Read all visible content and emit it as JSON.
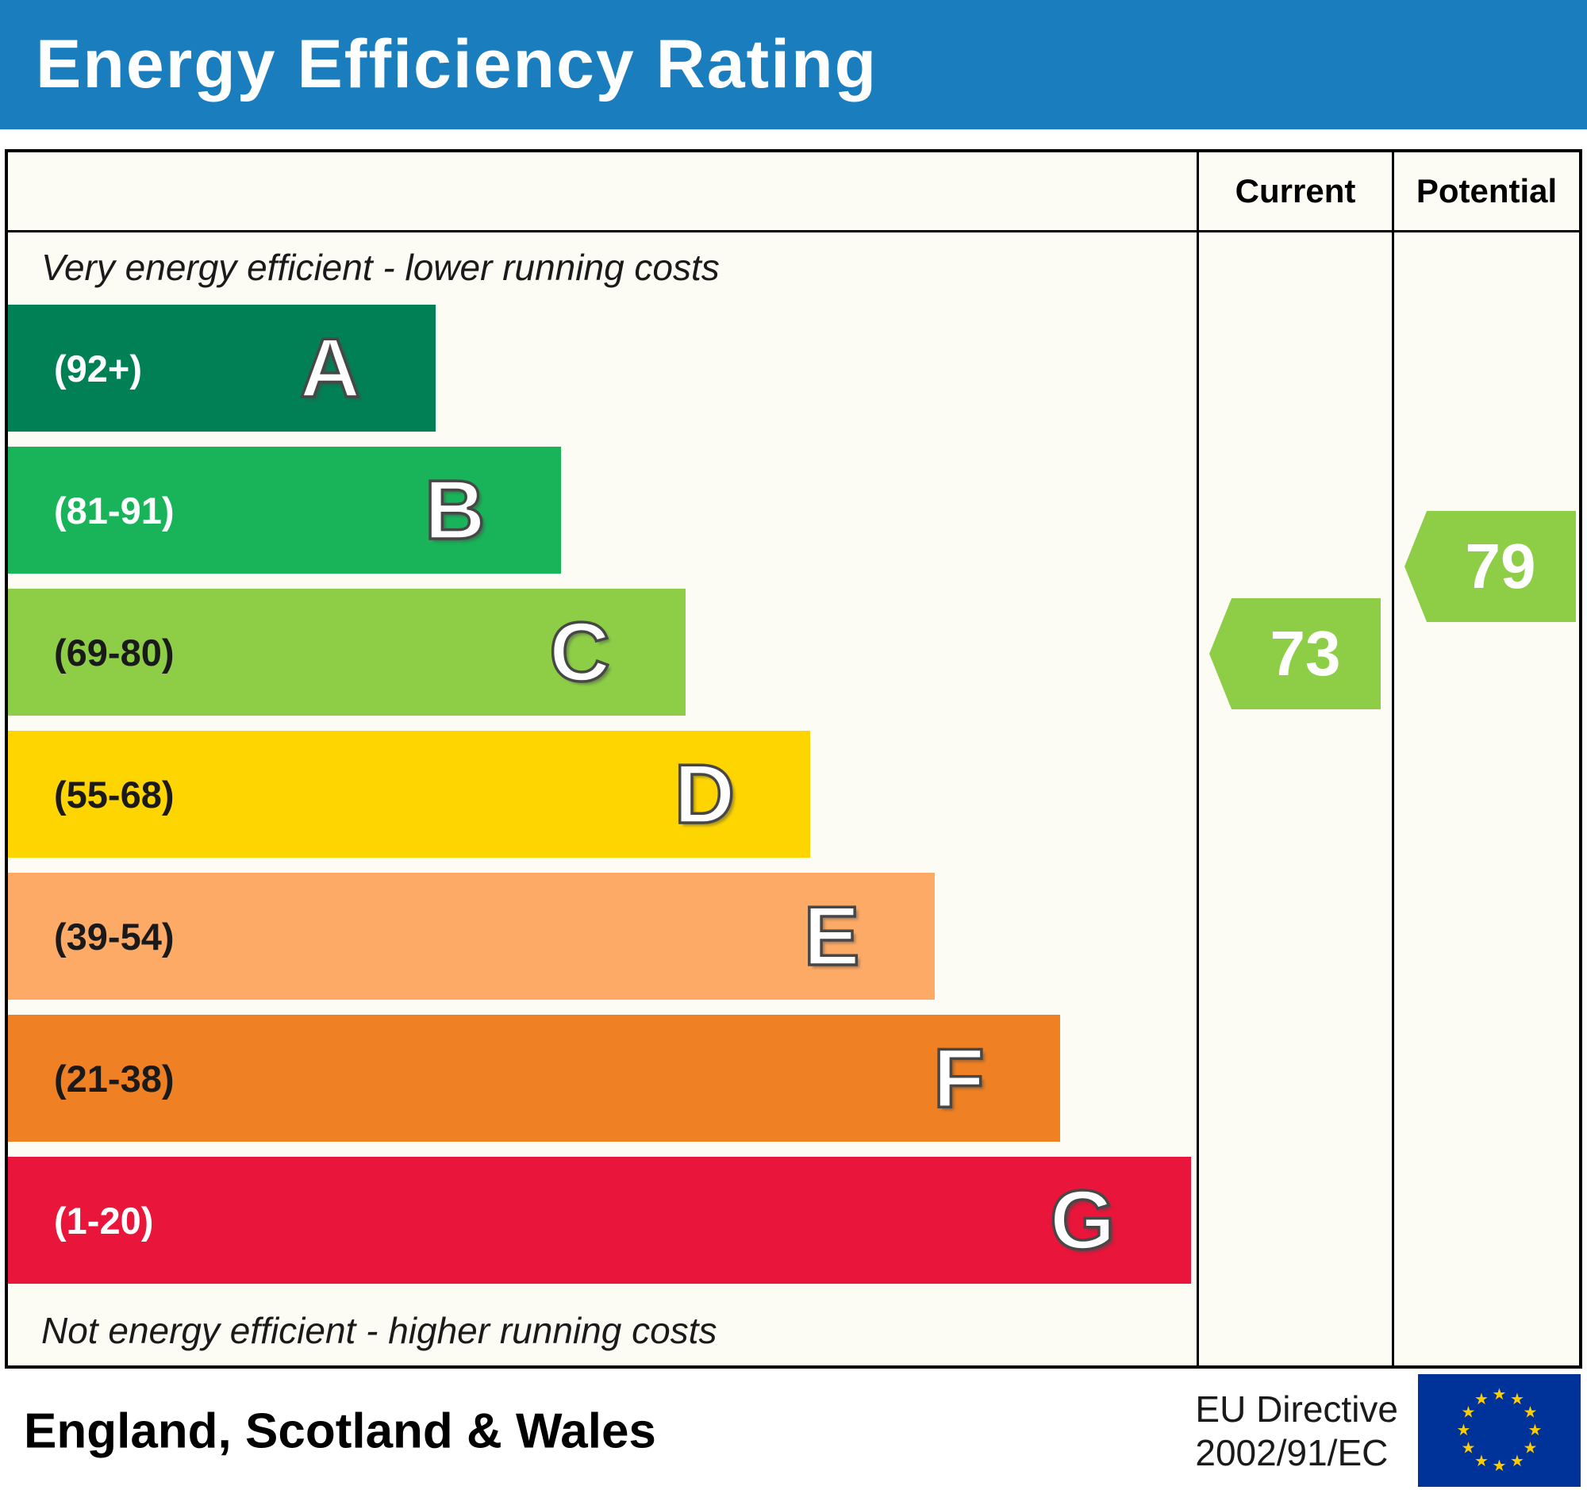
{
  "header": {
    "title": "Energy Efficiency Rating",
    "background_color": "#1a7dbe"
  },
  "table": {
    "columns": {
      "current": "Current",
      "potential": "Potential"
    },
    "top_note": "Very energy efficient - lower running costs",
    "bottom_note": "Not energy efficient - higher running costs"
  },
  "footer": {
    "region": "England, Scotland & Wales",
    "directive_line1": "EU Directive",
    "directive_line2": "2002/91/EC",
    "eu_flag_icon": "eu-flag",
    "eu_flag_colors": {
      "field": "#003399",
      "stars": "#ffcc00"
    }
  },
  "chart_data": {
    "type": "bar",
    "orientation": "horizontal",
    "title": "Energy Efficiency Rating",
    "grid": false,
    "legend_position": "none",
    "bands": [
      {
        "letter": "A",
        "range_label": "(92+)",
        "range_min": 92,
        "range_max": 100,
        "color": "#008054",
        "label_color": "#ffffff",
        "width_pct": 36
      },
      {
        "letter": "B",
        "range_label": "(81-91)",
        "range_min": 81,
        "range_max": 91,
        "color": "#19b459",
        "label_color": "#ffffff",
        "width_pct": 46.5
      },
      {
        "letter": "C",
        "range_label": "(69-80)",
        "range_min": 69,
        "range_max": 80,
        "color": "#8dce46",
        "label_color": "#1a1a1a",
        "width_pct": 57
      },
      {
        "letter": "D",
        "range_label": "(55-68)",
        "range_min": 55,
        "range_max": 68,
        "color": "#ffd500",
        "label_color": "#1a1a1a",
        "width_pct": 67.5
      },
      {
        "letter": "E",
        "range_label": "(39-54)",
        "range_min": 39,
        "range_max": 54,
        "color": "#fcaa65",
        "label_color": "#1a1a1a",
        "width_pct": 78
      },
      {
        "letter": "F",
        "range_label": "(21-38)",
        "range_min": 21,
        "range_max": 38,
        "color": "#ef8023",
        "label_color": "#1a1a1a",
        "width_pct": 88.5
      },
      {
        "letter": "G",
        "range_label": "(1-20)",
        "range_min": 1,
        "range_max": 20,
        "color": "#e9153b",
        "label_color": "#ffffff",
        "width_pct": 99.5
      }
    ],
    "markers": {
      "current": {
        "value": 73,
        "band": "C",
        "color": "#8dce46"
      },
      "potential": {
        "value": 79,
        "band": "C",
        "color": "#8dce46"
      }
    }
  }
}
